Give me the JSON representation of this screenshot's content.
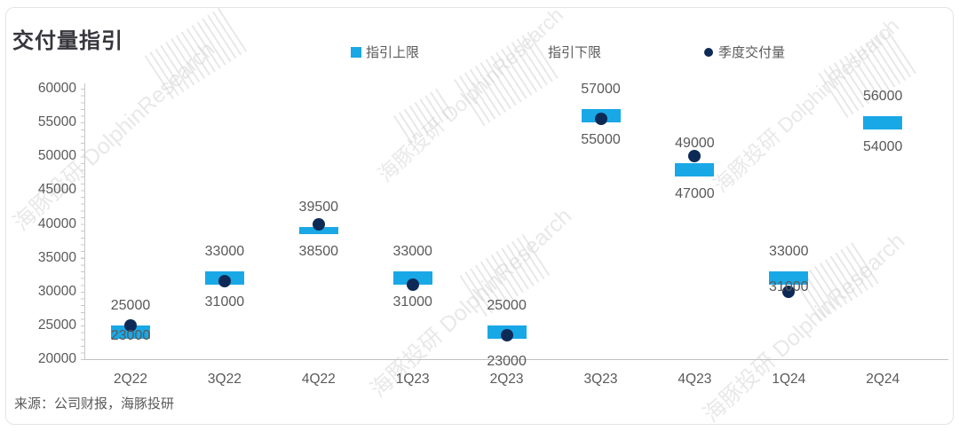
{
  "title": "交付量指引",
  "source": "来源：公司财报，海豚投研",
  "colors": {
    "bar": "#19A8E6",
    "dot": "#0D2A57",
    "label": "#595959",
    "axis": "#c8c8c8"
  },
  "legend": [
    {
      "label": "指引上限",
      "marker": "square",
      "color": "#19A8E6"
    },
    {
      "label": "指引下限",
      "marker": "none"
    },
    {
      "label": "季度交付量",
      "marker": "circle",
      "color": "#0D2A57"
    }
  ],
  "watermark": {
    "text": "海豚投研 DolphinResearch"
  },
  "chart_data": {
    "type": "bar",
    "subtype": "floating-range-bar-with-scatter",
    "title": "交付量指引",
    "categories": [
      "2Q22",
      "3Q22",
      "4Q22",
      "1Q23",
      "2Q23",
      "3Q23",
      "4Q23",
      "1Q24",
      "2Q24"
    ],
    "series": [
      {
        "name": "指引上限",
        "values": [
          25000,
          33000,
          39500,
          33000,
          25000,
          57000,
          49000,
          33000,
          56000
        ]
      },
      {
        "name": "指引下限",
        "values": [
          23000,
          31000,
          38500,
          31000,
          23000,
          55000,
          47000,
          31000,
          54000
        ]
      },
      {
        "name": "季度交付量",
        "type": "scatter",
        "values": [
          25000,
          31500,
          40000,
          31000,
          23500,
          55500,
          50000,
          30000,
          null
        ]
      }
    ],
    "upper_labels": [
      "25000",
      "33000",
      "39500",
      "33000",
      "25000",
      "57000",
      "49000",
      "33000",
      "56000"
    ],
    "lower_labels": [
      "23000",
      "31000",
      "38500",
      "31000",
      "23000",
      "55000",
      "47000",
      "31000",
      "54000"
    ],
    "ylim": [
      20000,
      60000
    ],
    "ytick_step": 5000,
    "grid": false,
    "legend_position": "top",
    "layout_hints": {
      "upper_label_dy": -22,
      "lower_dy": [
        -3,
        20,
        20,
        20,
        26,
        20,
        20,
        3,
        20
      ]
    }
  }
}
